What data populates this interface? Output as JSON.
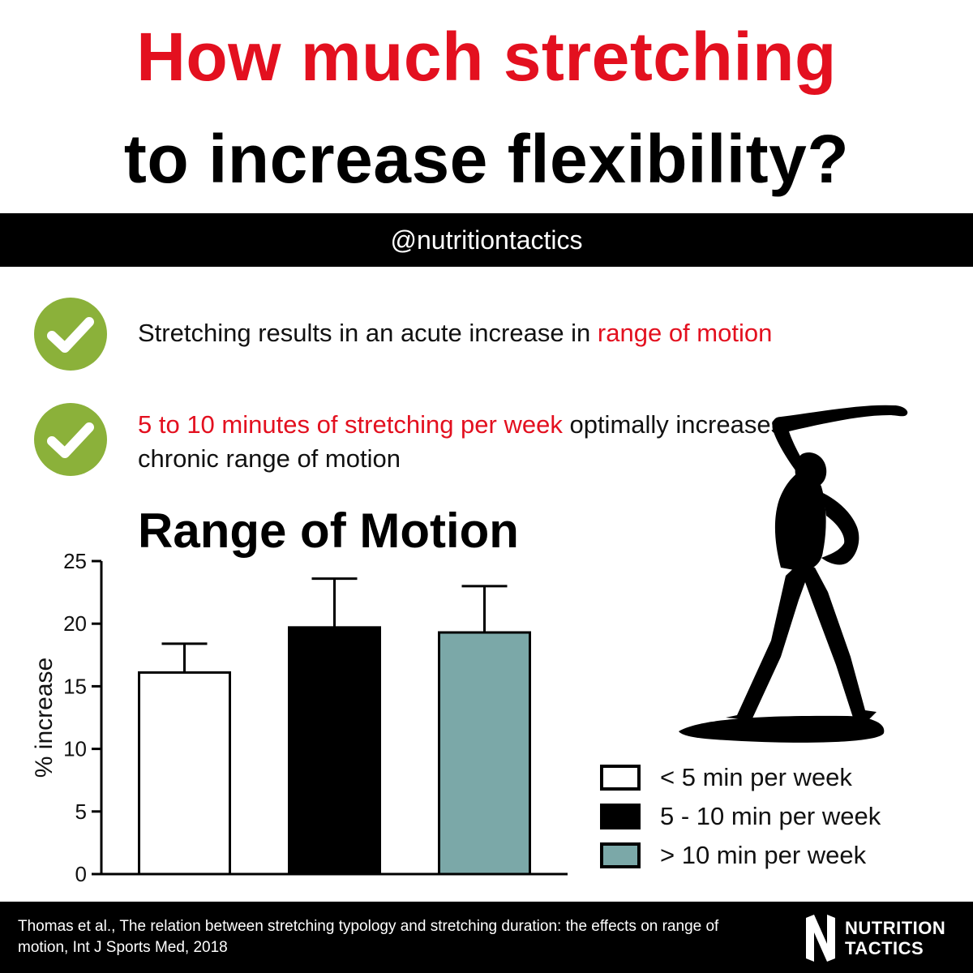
{
  "header": {
    "title_line1": "How much stretching",
    "title_line2": "to increase flexibility?",
    "handle": "@nutritiontactics"
  },
  "points": [
    {
      "text": "Stretching results in an acute increase in ",
      "highlight": "range of motion",
      "icon": "check-icon"
    },
    {
      "highlight": "5 to 10 minutes of stretching per week",
      "text": " optimally increases chronic range of motion",
      "icon": "check-icon"
    }
  ],
  "colors": {
    "accent_red": "#e3101f",
    "check_green": "#8bb13a",
    "bar_teal": "#7ba8a8",
    "black": "#000000"
  },
  "chart_data": {
    "type": "bar",
    "title": "Range of Motion",
    "xlabel": "",
    "ylabel": "% increase",
    "ylim": [
      0,
      25
    ],
    "yticks": [
      0,
      5,
      10,
      15,
      20,
      25
    ],
    "grid": false,
    "categories": [
      "< 5 min per week",
      "5 - 10 min per week",
      "> 10 min per week"
    ],
    "values": [
      16.1,
      19.7,
      19.3
    ],
    "errors": [
      2.3,
      3.9,
      3.7
    ],
    "colors": [
      "#ffffff",
      "#000000",
      "#7ba8a8"
    ],
    "legend_position": "bottom-right"
  },
  "legend": [
    {
      "label": "< 5 min per week",
      "color": "#ffffff"
    },
    {
      "label": "5 - 10 min per week",
      "color": "#000000"
    },
    {
      "label": "> 10 min per week",
      "color": "#7ba8a8"
    }
  ],
  "footer": {
    "citation": "Thomas et al., The relation between stretching typology and stretching duration: the effects on range of motion, Int J Sports Med, 2018",
    "brand_line1": "NUTRITION",
    "brand_line2": "TACTICS"
  }
}
